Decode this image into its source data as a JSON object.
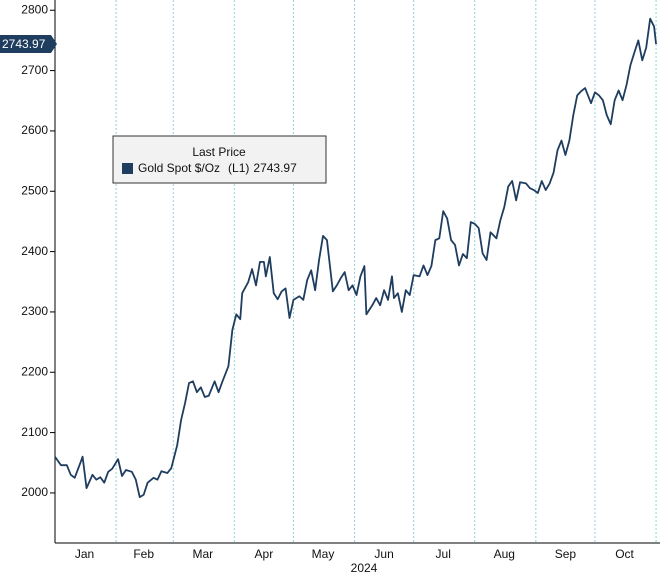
{
  "chart_data": {
    "type": "line",
    "xlabel": "2024",
    "legend_title": "Last Price",
    "legend_tag": "(L1)",
    "legend": "upper left",
    "x": [
      1,
      4,
      7,
      9,
      11,
      14,
      15,
      17,
      20,
      22,
      24,
      26,
      28,
      30,
      33,
      35,
      37,
      40,
      42,
      44,
      46,
      48,
      51,
      53,
      55,
      58,
      60,
      63,
      65,
      67,
      69,
      71,
      73,
      75,
      77,
      79,
      82,
      84,
      86,
      89,
      91,
      93,
      95,
      96,
      99,
      101,
      103,
      105,
      107,
      108,
      110,
      112,
      114,
      116,
      118,
      120,
      122,
      125,
      127,
      129,
      131,
      133,
      135,
      137,
      139,
      142,
      144,
      146,
      148,
      150,
      152,
      154,
      156,
      158,
      159,
      162,
      164,
      166,
      168,
      170,
      172,
      173,
      175,
      177,
      179,
      181,
      183,
      186,
      188,
      190,
      192,
      194,
      196,
      198,
      200,
      202,
      204,
      206,
      208,
      210,
      212,
      214,
      216,
      218,
      220,
      222,
      225,
      227,
      229,
      231,
      233,
      235,
      237,
      240,
      242,
      244,
      246,
      248,
      250,
      252,
      254,
      256,
      258,
      260,
      262,
      264,
      266,
      268,
      270,
      273,
      275,
      277,
      279,
      281,
      283,
      285,
      287,
      289,
      291,
      293,
      295,
      297,
      299,
      301,
      303,
      305,
      306
    ],
    "series": [
      {
        "name": "Gold Spot $/Oz",
        "color": "#1f3d5f",
        "values": [
          2060,
          2046,
          2046,
          2030,
          2025,
          2051,
          2060,
          2008,
          2030,
          2022,
          2026,
          2017,
          2035,
          2040,
          2056,
          2028,
          2038,
          2035,
          2022,
          1993,
          1997,
          2017,
          2025,
          2022,
          2036,
          2033,
          2041,
          2079,
          2121,
          2149,
          2182,
          2185,
          2167,
          2175,
          2159,
          2161,
          2185,
          2167,
          2185,
          2210,
          2270,
          2296,
          2288,
          2331,
          2349,
          2371,
          2344,
          2383,
          2383,
          2359,
          2391,
          2331,
          2321,
          2334,
          2339,
          2290,
          2320,
          2326,
          2320,
          2353,
          2369,
          2336,
          2386,
          2426,
          2419,
          2334,
          2344,
          2356,
          2366,
          2336,
          2344,
          2328,
          2359,
          2376,
          2296,
          2311,
          2323,
          2311,
          2336,
          2320,
          2359,
          2323,
          2331,
          2300,
          2336,
          2328,
          2361,
          2359,
          2377,
          2361,
          2376,
          2419,
          2422,
          2467,
          2455,
          2419,
          2411,
          2377,
          2396,
          2389,
          2449,
          2446,
          2439,
          2397,
          2386,
          2432,
          2422,
          2452,
          2474,
          2508,
          2517,
          2485,
          2515,
          2513,
          2505,
          2502,
          2497,
          2517,
          2502,
          2513,
          2531,
          2568,
          2584,
          2560,
          2584,
          2626,
          2659,
          2666,
          2671,
          2646,
          2664,
          2659,
          2651,
          2626,
          2611,
          2651,
          2667,
          2651,
          2676,
          2709,
          2730,
          2750,
          2717,
          2738,
          2786,
          2773,
          2743.97
        ]
      }
    ],
    "xlim": [
      1,
      308
    ],
    "xticks": [
      {
        "value": 16,
        "label": "Jan"
      },
      {
        "value": 46,
        "label": "Feb"
      },
      {
        "value": 76,
        "label": "Mar"
      },
      {
        "value": 107,
        "label": "Apr"
      },
      {
        "value": 137,
        "label": "May"
      },
      {
        "value": 168,
        "label": "Jun"
      },
      {
        "value": 198,
        "label": "Jul"
      },
      {
        "value": 229,
        "label": "Aug"
      },
      {
        "value": 260,
        "label": "Sep"
      },
      {
        "value": 290,
        "label": "Oct"
      }
    ],
    "xgrid": [
      1,
      32,
      61,
      92,
      122,
      153,
      183,
      214,
      245,
      275,
      306
    ],
    "ylim": [
      1917,
      2817
    ],
    "yticks": [
      2000,
      2100,
      2200,
      2300,
      2400,
      2500,
      2600,
      2700,
      2800
    ],
    "grid": true
  }
}
